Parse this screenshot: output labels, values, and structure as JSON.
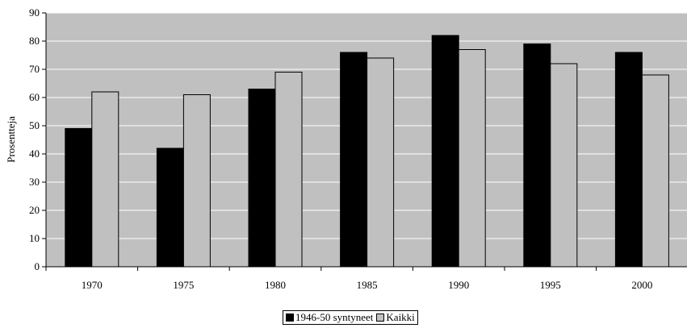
{
  "chart_data": {
    "type": "bar",
    "categories": [
      "1970",
      "1975",
      "1980",
      "1985",
      "1990",
      "1995",
      "2000"
    ],
    "series": [
      {
        "name": "1946-50 syntyneet",
        "values": [
          49,
          42,
          63,
          76,
          82,
          79,
          76
        ],
        "color": "#000000"
      },
      {
        "name": "Kaikki",
        "values": [
          62,
          61,
          69,
          74,
          77,
          72,
          68
        ],
        "color": "#c0c0c0"
      }
    ],
    "title": "",
    "xlabel": "",
    "ylabel": "Prosentteja",
    "ylim": [
      0,
      90
    ],
    "yticks": [
      0,
      10,
      20,
      30,
      40,
      50,
      60,
      70,
      80,
      90
    ],
    "plot_background": "#c0c0c0",
    "grid": true,
    "legend": "bottom-center"
  }
}
